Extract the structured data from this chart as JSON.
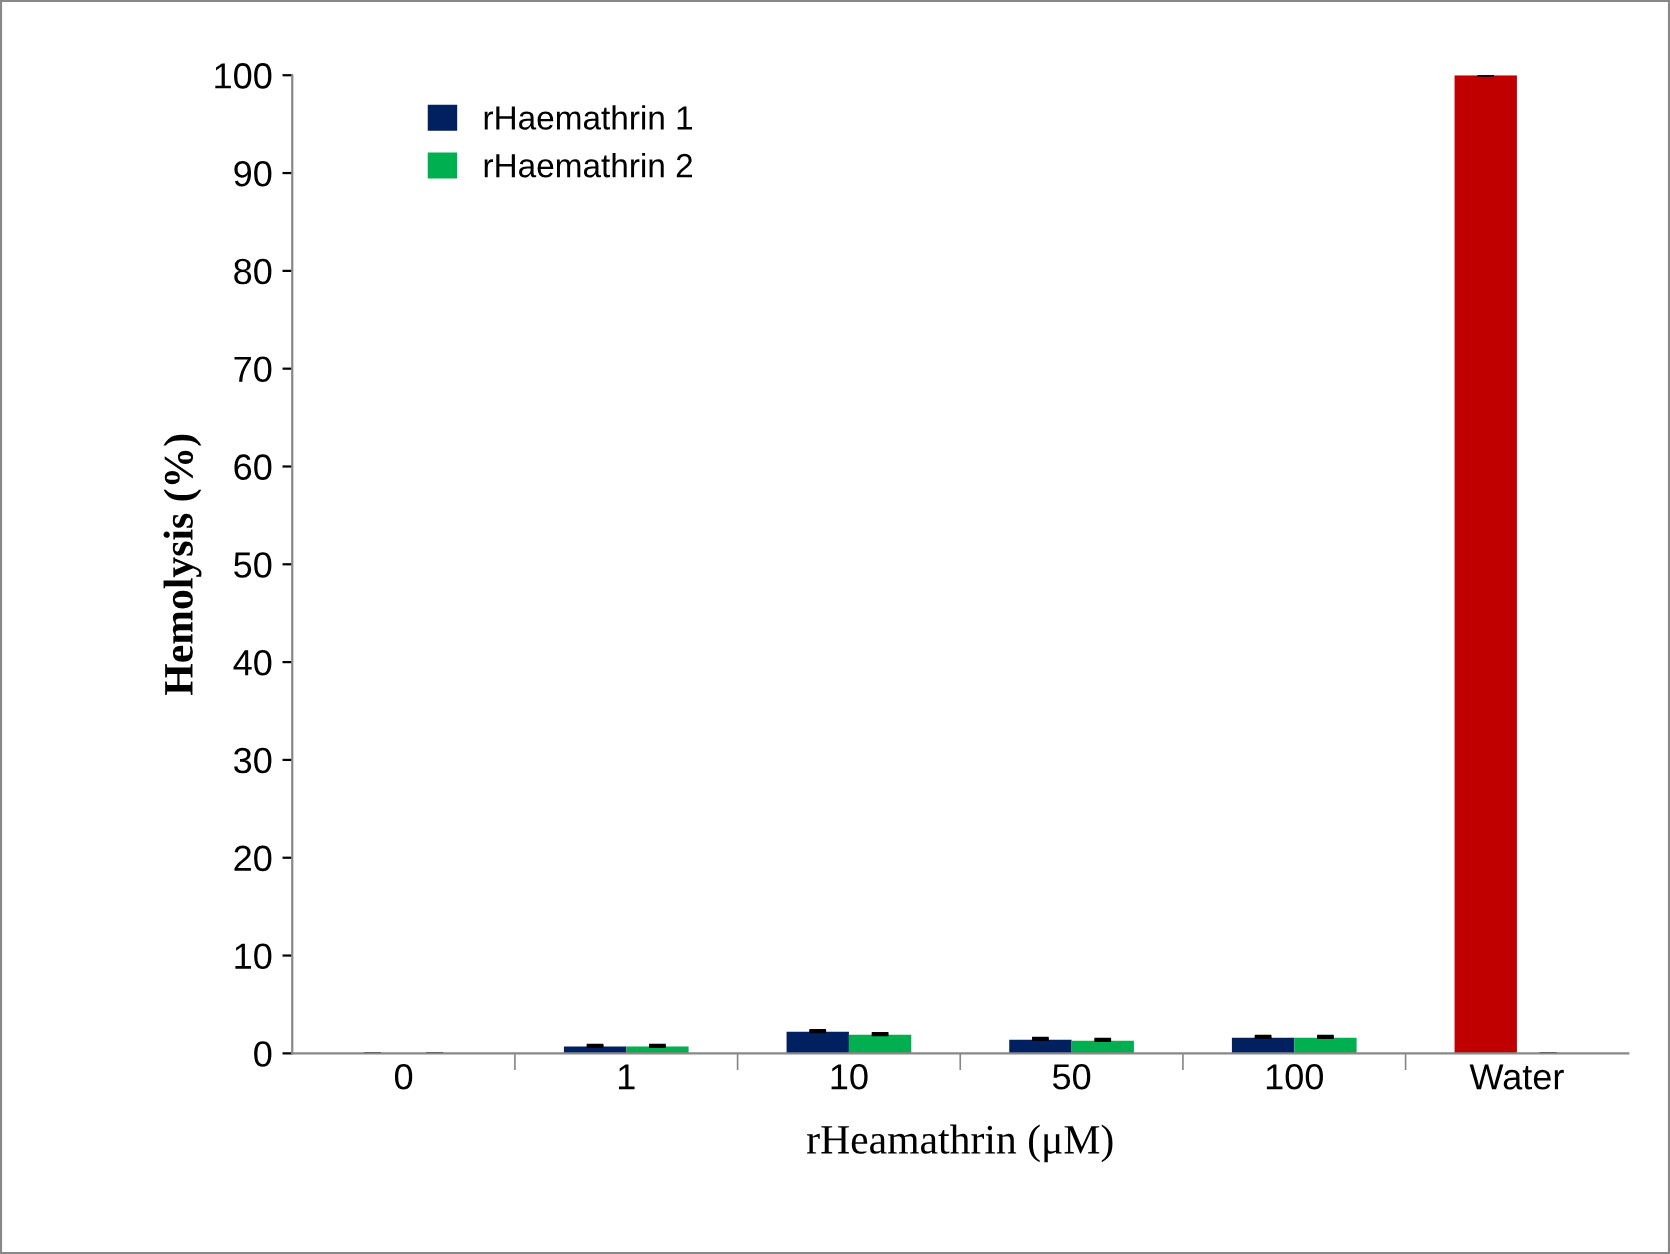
{
  "chart_data": {
    "type": "bar",
    "xlabel": "rHeamathrin (μM)",
    "ylabel": "Hemolysis (%)",
    "categories": [
      "0",
      "1",
      "10",
      "50",
      "100",
      "Water"
    ],
    "series": [
      {
        "name": "rHaemathrin 1",
        "color": "#002060",
        "colors": [
          "#002060",
          "#002060",
          "#002060",
          "#002060",
          "#002060",
          "#c00000"
        ],
        "values": [
          0,
          0.7,
          2.2,
          1.4,
          1.6,
          100
        ],
        "errors": [
          null,
          0.15,
          0.15,
          0.15,
          0.15,
          0.1
        ]
      },
      {
        "name": "rHaemathrin 2",
        "color": "#00b050",
        "values": [
          0,
          0.7,
          1.9,
          1.3,
          1.6,
          0
        ],
        "errors": [
          null,
          0.15,
          0.15,
          0.15,
          0.15,
          null
        ]
      }
    ],
    "ylim": [
      0,
      100
    ],
    "yticks": [
      0,
      10,
      20,
      30,
      40,
      50,
      60,
      70,
      80,
      90,
      100
    ],
    "grid": false,
    "legend": "top left"
  }
}
